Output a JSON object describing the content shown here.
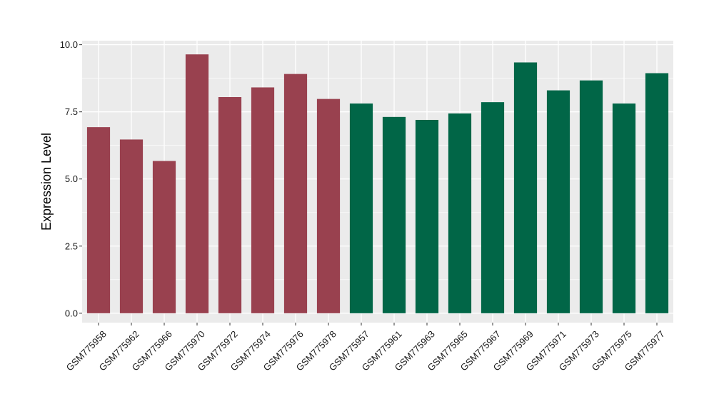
{
  "chart_data": {
    "type": "bar",
    "ylabel": "Expression Level",
    "xlabel": "",
    "ylim": [
      -0.35,
      10.15
    ],
    "yticks": [
      0.0,
      2.5,
      5.0,
      7.5,
      10.0
    ],
    "ytick_labels": [
      "0.0",
      "2.5",
      "5.0",
      "7.5",
      "10.0"
    ],
    "grid": true,
    "legend": "none",
    "categories": [
      "GSM775958",
      "GSM775962",
      "GSM775966",
      "GSM775970",
      "GSM775972",
      "GSM775974",
      "GSM775976",
      "GSM775978",
      "GSM775957",
      "GSM775961",
      "GSM775963",
      "GSM775965",
      "GSM775967",
      "GSM775969",
      "GSM775971",
      "GSM775973",
      "GSM775975",
      "GSM775977"
    ],
    "values": [
      6.93,
      6.47,
      5.67,
      9.64,
      8.05,
      8.41,
      8.91,
      7.98,
      7.81,
      7.31,
      7.2,
      7.44,
      7.86,
      9.34,
      8.3,
      8.67,
      7.81,
      8.94
    ],
    "groups": [
      0,
      0,
      0,
      0,
      0,
      0,
      0,
      0,
      1,
      1,
      1,
      1,
      1,
      1,
      1,
      1,
      1,
      1
    ],
    "group_colors": [
      "#99414f",
      "#016647"
    ],
    "panel_background": "#ebebeb",
    "gridline_color": "#ffffff"
  }
}
